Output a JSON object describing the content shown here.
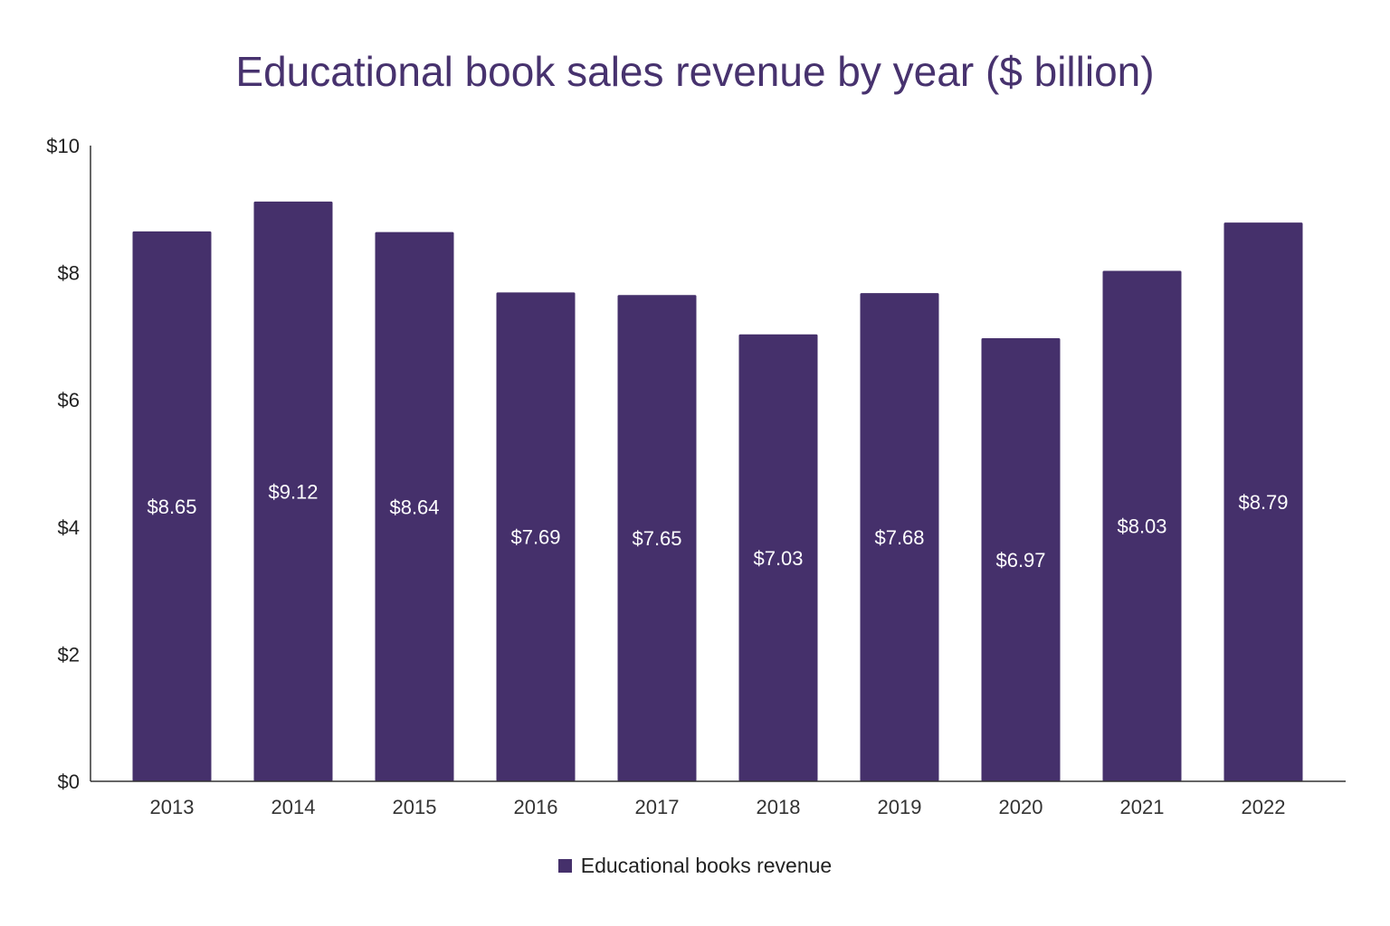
{
  "chart_data": {
    "type": "bar",
    "title": "Educational book sales revenue by year ($ billion)",
    "categories": [
      "2013",
      "2014",
      "2015",
      "2016",
      "2017",
      "2018",
      "2019",
      "2020",
      "2021",
      "2022"
    ],
    "series": [
      {
        "name": "Educational books revenue",
        "values": [
          8.65,
          9.12,
          8.64,
          7.69,
          7.65,
          7.03,
          7.68,
          6.97,
          8.03,
          8.79
        ]
      }
    ],
    "data_labels": [
      "$8.65",
      "$9.12",
      "$8.64",
      "$7.69",
      "$7.65",
      "$7.03",
      "$7.68",
      "$6.97",
      "$8.03",
      "$8.79"
    ],
    "yticks": [
      "$0",
      "$2",
      "$4",
      "$6",
      "$8",
      "$10"
    ],
    "ytick_values": [
      0,
      2,
      4,
      6,
      8,
      10
    ],
    "ylim": [
      0,
      10
    ],
    "xlabel": "",
    "ylabel": "",
    "grid": false,
    "legend_position": "bottom",
    "colors": {
      "bar": "#45306b",
      "title": "#47326e",
      "label": "#ffffff"
    }
  }
}
